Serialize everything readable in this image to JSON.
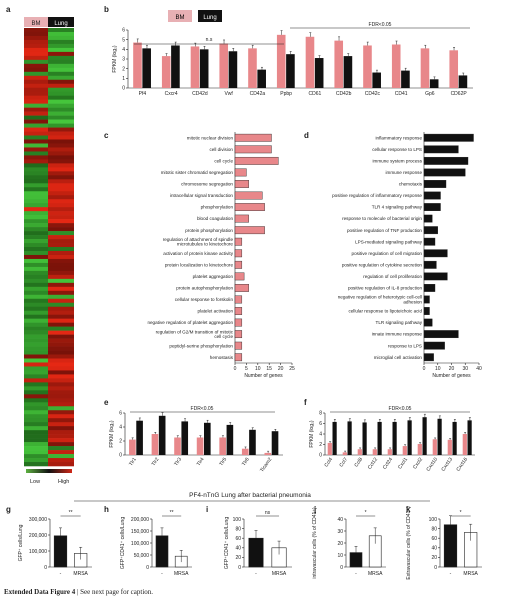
{
  "colors": {
    "bm": "#e8878a",
    "lung": "#111111",
    "heat_low": "#5db040",
    "heat_high": "#d02818"
  },
  "panels": {
    "a": "a",
    "b": "b",
    "c": "c",
    "d": "d",
    "e": "e",
    "f": "f",
    "g": "g",
    "h": "h",
    "i": "i",
    "j": "j",
    "k": "k"
  },
  "heatmap": {
    "col_bm": "BM",
    "col_lung": "Lung",
    "low": "Low",
    "high": "High"
  },
  "legend": {
    "bm": "BM",
    "lung": "Lung"
  },
  "fdr": "FDR<0.05",
  "ns": "n.s",
  "ns2": "ns",
  "star": "*",
  "star2": "**",
  "ylabel_fpkm": "FPKM (log₂)",
  "xlabel_genes": "Number of genes",
  "section_title": "PF4-nTnG Lung after bacterial pneumonia",
  "caption_label": "Extended Data Figure 4",
  "caption_text": " | See next page for caption.",
  "chart_data": [
    {
      "panel": "b",
      "type": "bar",
      "ylim": [
        0,
        6
      ],
      "yticks": [
        0,
        1,
        2,
        3,
        4,
        5,
        6
      ],
      "categories": [
        "Pf4",
        "Cxcr4",
        "CD42d",
        "Vwf",
        "CD42a",
        "Ppbp",
        "CD61",
        "CD42b",
        "CD42c",
        "CD41",
        "Gp6",
        "CD62P"
      ],
      "series": [
        {
          "name": "BM",
          "values": [
            4.7,
            3.3,
            4.3,
            4.6,
            4.1,
            5.5,
            5.3,
            4.9,
            4.4,
            4.5,
            4.1,
            3.9
          ]
        },
        {
          "name": "Lung",
          "values": [
            4.1,
            4.4,
            4.0,
            3.8,
            1.9,
            3.5,
            3.1,
            3.3,
            1.6,
            1.8,
            0.9,
            1.3
          ]
        }
      ]
    },
    {
      "panel": "c",
      "type": "bar",
      "orientation": "horizontal",
      "xlim": [
        0,
        25
      ],
      "xticks": [
        0,
        5,
        10,
        15,
        20,
        25
      ],
      "categories": [
        "mitotic nuclear division",
        "cell division",
        "cell cycle",
        "mitotic sister chromatid segregation",
        "chromosome segregation",
        "intracellular signal transduction",
        "phosphorylation",
        "blood coagulation",
        "protein phosphorylation",
        "regulation of attachment of spindle microtubules to kinetochore",
        "activation of protein kinase activity",
        "protein localization to kinetochore",
        "platelet aggregation",
        "protein autophosphorylation",
        "cellular response to forskolin",
        "platelet activation",
        "negative regulation of platelet aggregation",
        "regulation of G2/M transition of mitotic cell cycle",
        "peptidyl-serine phosphorylation",
        "hemostasis"
      ],
      "values": [
        16,
        16,
        19,
        5,
        6,
        12,
        13,
        6,
        13,
        3,
        3,
        3,
        4,
        6,
        3,
        3,
        3,
        3,
        3,
        3
      ]
    },
    {
      "panel": "d",
      "type": "bar",
      "orientation": "horizontal",
      "xlim": [
        0,
        40
      ],
      "xticks": [
        0,
        10,
        20,
        30,
        40
      ],
      "categories": [
        "inflammatory response",
        "cellular response to LPS",
        "immune system process",
        "immune response",
        "chemotaxis",
        "positive regulation of inflammatory response",
        "TLR 4 signaling pathway",
        "response to molecule of bacterial origin",
        "positive regulation of TNF production",
        "LPS-mediated signaling pathway",
        "positive regulation of cell migration",
        "positive regulation of cytokine secretion",
        "regulation of cell proliferation",
        "positive regulation of IL-8 production",
        "negative regulation of heterotypic cell-cell adhesion",
        "cellular response to lipoteichoic acid",
        "TLR signaling pathway",
        "innate immune response",
        "response to LPS",
        "microglial cell activation"
      ],
      "values": [
        36,
        25,
        32,
        30,
        16,
        12,
        12,
        6,
        10,
        8,
        17,
        9,
        17,
        8,
        4,
        4,
        6,
        25,
        15,
        7
      ]
    },
    {
      "panel": "e",
      "type": "bar",
      "ylim": [
        0,
        6
      ],
      "yticks": [
        0,
        2,
        4,
        6
      ],
      "categories": [
        "Tlr1",
        "Tlr2",
        "Tlr3",
        "Tlr4",
        "Tlr5",
        "Tlr6",
        "Ticam2"
      ],
      "series": [
        {
          "name": "BM",
          "values": [
            2.2,
            3.0,
            2.5,
            2.5,
            2.5,
            0.9,
            0.3
          ]
        },
        {
          "name": "Lung",
          "values": [
            4.9,
            5.6,
            4.8,
            4.6,
            4.3,
            3.6,
            3.4
          ]
        }
      ]
    },
    {
      "panel": "f",
      "type": "bar",
      "ylim": [
        0,
        8
      ],
      "yticks": [
        0,
        2,
        4,
        6,
        8
      ],
      "categories": [
        "Ccl4",
        "Ccl7",
        "Ccl8",
        "Ccl12",
        "Ccl24",
        "Cxcl1",
        "Cxcl2",
        "Cxcl10",
        "Cxcl13",
        "Cxcl16"
      ],
      "series": [
        {
          "name": "BM",
          "values": [
            2.3,
            0.5,
            1.1,
            1.1,
            1.1,
            1.7,
            2.1,
            3.0,
            2.9,
            4.0
          ]
        },
        {
          "name": "Lung",
          "values": [
            6.3,
            6.4,
            6.2,
            6.3,
            6.3,
            6.6,
            7.2,
            6.9,
            6.3,
            6.6
          ]
        }
      ]
    },
    {
      "panel": "g",
      "type": "bar",
      "ylabel": "GFP⁺ cells/Lung",
      "ylim": [
        0,
        300000
      ],
      "ytick_labels": [
        "0",
        "100,000",
        "200,000",
        "300,000"
      ],
      "categories": [
        "-",
        "MRSA"
      ],
      "values": [
        195000,
        85000
      ]
    },
    {
      "panel": "h",
      "type": "bar",
      "ylabel": "GFP⁺CD41⁺ cells/Lung",
      "ylim": [
        0,
        200000
      ],
      "ytick_labels": [
        "0",
        "50,000",
        "100,000",
        "150,000",
        "200,000"
      ],
      "categories": [
        "-",
        "MRSA"
      ],
      "values": [
        130000,
        45000
      ]
    },
    {
      "panel": "i",
      "type": "bar",
      "ylabel": "GFP⁺CD41⁺ cells/Lung",
      "ylim": [
        0,
        100
      ],
      "ytick_labels": [
        "0",
        "20",
        "40",
        "60",
        "80",
        "100"
      ],
      "categories": [
        "-",
        "MRSA"
      ],
      "values": [
        60,
        40
      ]
    },
    {
      "panel": "j",
      "type": "bar",
      "ylabel": "intravascular cells (% of CD41⁺)",
      "ylim": [
        0,
        40
      ],
      "ytick_labels": [
        "0",
        "10",
        "20",
        "30",
        "40"
      ],
      "categories": [
        "-",
        "MRSA"
      ],
      "values": [
        12,
        26
      ]
    },
    {
      "panel": "k",
      "type": "bar",
      "ylabel": "Extravascular cells (% of CD41⁺)",
      "ylim": [
        0,
        100
      ],
      "ytick_labels": [
        "0",
        "20",
        "40",
        "60",
        "80",
        "100"
      ],
      "categories": [
        "-",
        "MRSA"
      ],
      "values": [
        88,
        72
      ]
    }
  ]
}
